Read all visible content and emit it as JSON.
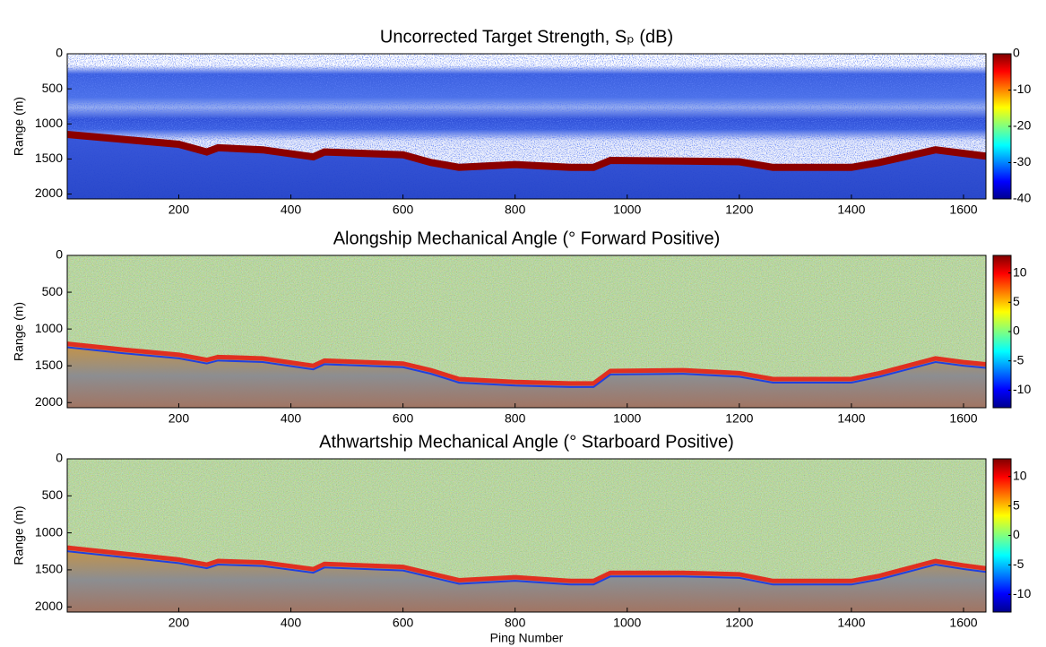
{
  "chart_data": [
    {
      "type": "heatmap",
      "title": "Uncorrected Target Strength, Sₚ (dB)",
      "ylabel": "Range (m)",
      "x": [
        1,
        100,
        200,
        250,
        270,
        350,
        440,
        460,
        600,
        650,
        700,
        800,
        900,
        940,
        970,
        1100,
        1200,
        1260,
        1400,
        1450,
        1550,
        1600,
        1640
      ],
      "values": [
        1150,
        1220,
        1290,
        1400,
        1340,
        1370,
        1470,
        1400,
        1440,
        1550,
        1620,
        1580,
        1620,
        1620,
        1520,
        1530,
        1540,
        1620,
        1620,
        1550,
        1370,
        1420,
        1460
      ],
      "xlim": [
        1,
        1640
      ],
      "xticks": [
        200,
        400,
        600,
        800,
        1000,
        1200,
        1400,
        1600
      ],
      "ylim": [
        0,
        2070
      ],
      "yticks": [
        0,
        500,
        1000,
        1500,
        2000
      ],
      "y_reversed": true,
      "colormap": "jet",
      "clim": [
        -40,
        0
      ],
      "cticks": [
        0,
        -10,
        -20,
        -30,
        -40
      ]
    },
    {
      "type": "heatmap",
      "title": "Alongship Mechanical Angle (° Forward Positive)",
      "ylabel": "Range (m)",
      "x": [
        1,
        100,
        200,
        250,
        270,
        350,
        440,
        460,
        600,
        650,
        700,
        800,
        900,
        940,
        970,
        1100,
        1200,
        1260,
        1400,
        1450,
        1550,
        1600,
        1640
      ],
      "values": [
        1200,
        1280,
        1350,
        1420,
        1380,
        1400,
        1500,
        1430,
        1470,
        1560,
        1680,
        1720,
        1740,
        1740,
        1570,
        1560,
        1600,
        1680,
        1680,
        1600,
        1400,
        1450,
        1480
      ],
      "xlim": [
        1,
        1640
      ],
      "xticks": [
        200,
        400,
        600,
        800,
        1000,
        1200,
        1400,
        1600
      ],
      "ylim": [
        0,
        2070
      ],
      "yticks": [
        0,
        500,
        1000,
        1500,
        2000
      ],
      "y_reversed": true,
      "colormap": "jet",
      "clim": [
        -13,
        13
      ],
      "cticks": [
        10,
        5,
        0,
        -5,
        -10
      ]
    },
    {
      "type": "heatmap",
      "title": "Athwartship Mechanical Angle (° Starboard Positive)",
      "ylabel": "Range (m)",
      "xlabel": "Ping Number",
      "x": [
        1,
        100,
        200,
        250,
        270,
        350,
        440,
        460,
        600,
        650,
        700,
        800,
        900,
        940,
        970,
        1100,
        1200,
        1260,
        1400,
        1450,
        1550,
        1600,
        1640
      ],
      "values": [
        1200,
        1280,
        1360,
        1430,
        1380,
        1400,
        1490,
        1420,
        1460,
        1550,
        1640,
        1600,
        1650,
        1650,
        1540,
        1540,
        1560,
        1650,
        1650,
        1580,
        1380,
        1440,
        1480
      ],
      "xlim": [
        1,
        1640
      ],
      "xticks": [
        200,
        400,
        600,
        800,
        1000,
        1200,
        1400,
        1600
      ],
      "ylim": [
        0,
        2070
      ],
      "yticks": [
        0,
        500,
        1000,
        1500,
        2000
      ],
      "y_reversed": true,
      "colormap": "jet",
      "clim": [
        -13,
        13
      ],
      "cticks": [
        10,
        5,
        0,
        -5,
        -10
      ]
    }
  ]
}
